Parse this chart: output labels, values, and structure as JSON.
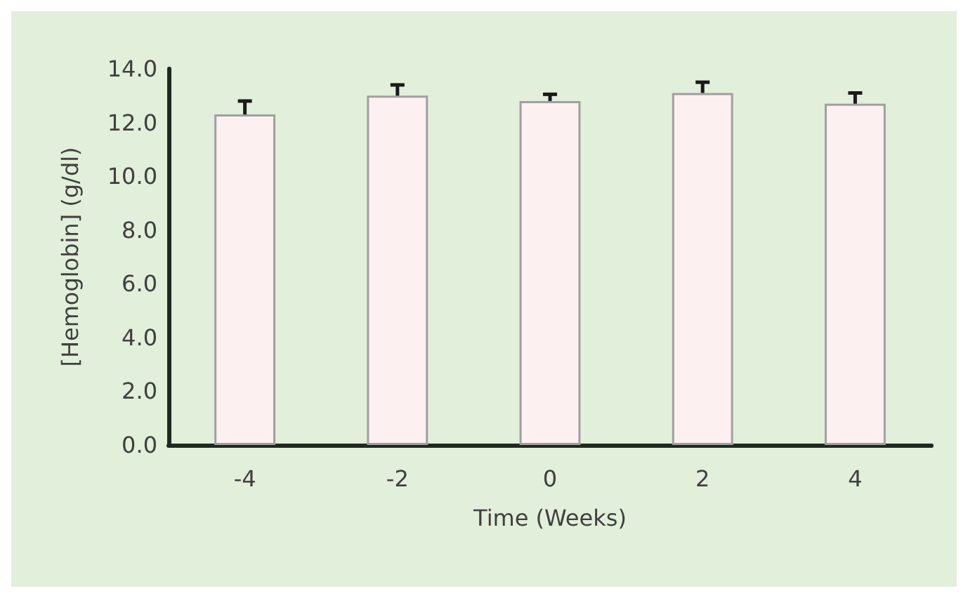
{
  "chart_data": {
    "type": "bar",
    "xlabel": "Time (Weeks)",
    "ylabel": "[Hemoglobin] (g/dl)",
    "categories": [
      "-4",
      "-2",
      "0",
      "2",
      "4"
    ],
    "values": [
      12.3,
      13.0,
      12.8,
      13.1,
      12.7
    ],
    "errors": [
      [
        12.3,
        12.8
      ],
      [
        13.0,
        13.4
      ],
      [
        12.8,
        13.05
      ],
      [
        13.1,
        13.5
      ],
      [
        12.7,
        13.1
      ]
    ],
    "color": "#fdf0f0",
    "ylim": [
      0,
      14
    ],
    "yticks": [
      {
        "value": 0,
        "label": "0.0"
      },
      {
        "value": 2,
        "label": "2.0"
      },
      {
        "value": 4,
        "label": "4.0"
      },
      {
        "value": 6,
        "label": "6.0"
      },
      {
        "value": 8,
        "label": "8.0"
      },
      {
        "value": 10,
        "label": "10.0"
      },
      {
        "value": 12,
        "label": "12.0"
      },
      {
        "value": 14,
        "label": "14.0"
      }
    ],
    "grid": false
  }
}
